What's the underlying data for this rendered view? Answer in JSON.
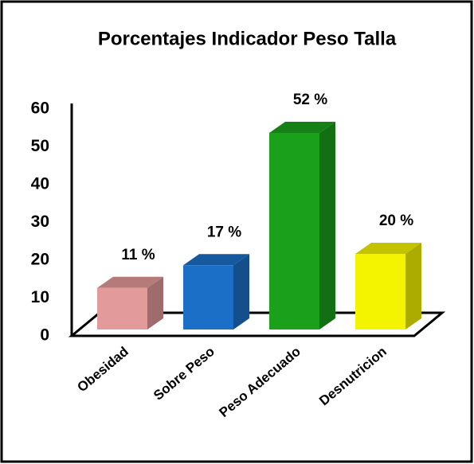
{
  "chart_data": {
    "type": "bar3d",
    "title": "Porcentajes Indicador Peso Talla",
    "categories": [
      "Obesidad",
      "Sobre Peso",
      "Peso Adecuado",
      "Desnutricion"
    ],
    "values": [
      11,
      17,
      52,
      20
    ],
    "value_labels": [
      "11 %",
      "17 %",
      "52 %",
      "20 %"
    ],
    "colors": [
      "#e29a9a",
      "#1c6fc6",
      "#1aa01a",
      "#f4f400"
    ],
    "ylim": [
      0,
      60
    ],
    "yticks": [
      0,
      10,
      20,
      30,
      40,
      50,
      60
    ],
    "grid": false
  }
}
